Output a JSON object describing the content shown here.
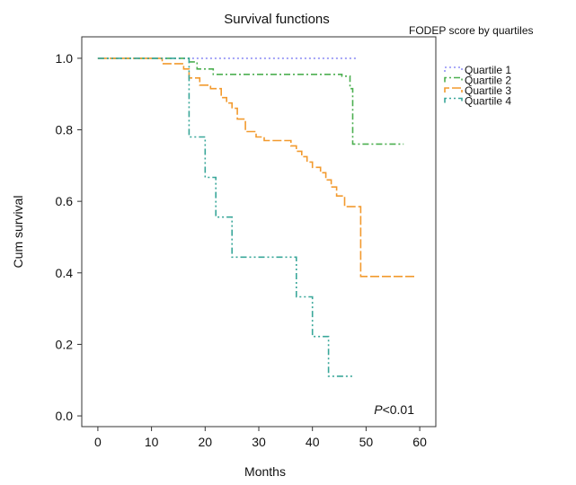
{
  "chart_data": {
    "type": "line",
    "step": true,
    "title": "Survival functions",
    "xlabel": "Months",
    "ylabel": "Cum survival",
    "xlim": [
      -3,
      63
    ],
    "ylim": [
      -0.03,
      1.06
    ],
    "xticks": [
      0,
      10,
      20,
      30,
      40,
      50,
      60
    ],
    "yticks": [
      "0.0",
      "0.2",
      "0.4",
      "0.6",
      "0.8",
      "1.0"
    ],
    "grid": false,
    "legend": {
      "title": "FODEP score by quartiles",
      "position": "right-outside-top"
    },
    "annotation": {
      "italic": "P",
      "rest": "<0.01"
    },
    "series": [
      {
        "name": "Quartile 1",
        "color": "#8f8ff5",
        "dash": "dotted",
        "x": [
          0,
          48.5
        ],
        "y": [
          1.0,
          1.0
        ]
      },
      {
        "name": "Quartile 2",
        "color": "#4caf50",
        "dash": "dashdot",
        "x": [
          0,
          10,
          17,
          18.5,
          21.5,
          45.5,
          47,
          47.5,
          57
        ],
        "y": [
          1.0,
          1.0,
          0.99,
          0.97,
          0.955,
          0.95,
          0.915,
          0.76,
          0.76
        ]
      },
      {
        "name": "Quartile 3",
        "color": "#f29a2e",
        "dash": "longdash",
        "x": [
          0,
          10,
          12,
          16,
          17,
          19,
          21,
          23,
          24,
          25,
          26,
          27.5,
          29.5,
          31,
          36,
          37,
          38,
          39,
          40,
          41.5,
          42.5,
          43.5,
          44.5,
          46,
          49,
          59
        ],
        "y": [
          1.0,
          1.0,
          0.985,
          0.97,
          0.945,
          0.925,
          0.915,
          0.89,
          0.875,
          0.86,
          0.83,
          0.795,
          0.78,
          0.77,
          0.755,
          0.74,
          0.725,
          0.71,
          0.695,
          0.68,
          0.66,
          0.64,
          0.615,
          0.585,
          0.39,
          0.39
        ]
      },
      {
        "name": "Quartile 4",
        "color": "#3aa79a",
        "dash": "dashdotdot",
        "x": [
          0,
          17,
          20,
          22,
          25,
          37,
          40,
          43,
          47.5
        ],
        "y": [
          1.0,
          0.78,
          0.667,
          0.556,
          0.444,
          0.333,
          0.222,
          0.111,
          0.111
        ]
      }
    ]
  }
}
